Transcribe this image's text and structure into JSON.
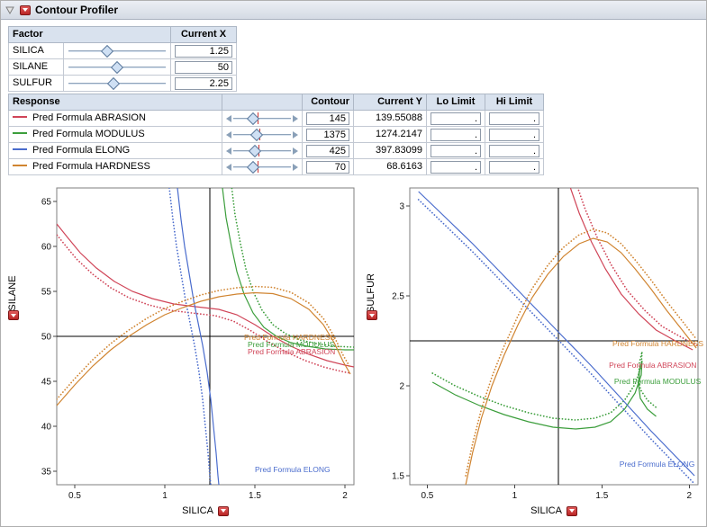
{
  "window": {
    "title": "Contour Profiler"
  },
  "factor_table": {
    "col_factor": "Factor",
    "col_current_x": "Current X",
    "rows": [
      {
        "name": "SILICA",
        "value": "1.25",
        "slider_pos": 0.4
      },
      {
        "name": "SILANE",
        "value": "50",
        "slider_pos": 0.5
      },
      {
        "name": "SULFUR",
        "value": "2.25",
        "slider_pos": 0.46
      }
    ]
  },
  "response_table": {
    "col_response": "Response",
    "col_contour": "Contour",
    "col_current_y": "Current Y",
    "col_lo": "Lo Limit",
    "col_hi": "Hi Limit",
    "rows": [
      {
        "name": "Pred Formula ABRASION",
        "color": "#d04558",
        "contour": "145",
        "current_y": "139.55088",
        "lo": ".",
        "hi": ".",
        "slider_pos": 0.38,
        "marker_pos": 0.44
      },
      {
        "name": "Pred Formula MODULUS",
        "color": "#3c9e3c",
        "contour": "1375",
        "current_y": "1274.2147",
        "lo": ".",
        "hi": ".",
        "slider_pos": 0.42,
        "marker_pos": 0.46
      },
      {
        "name": "Pred Formula ELONG",
        "color": "#4a6ccd",
        "contour": "425",
        "current_y": "397.83099",
        "lo": ".",
        "hi": ".",
        "slider_pos": 0.4,
        "marker_pos": 0.45
      },
      {
        "name": "Pred Formula HARDNESS",
        "color": "#d08430",
        "contour": "70",
        "current_y": "68.6163",
        "lo": ".",
        "hi": ".",
        "slider_pos": 0.38,
        "marker_pos": 0.44
      }
    ]
  },
  "chart_data": [
    {
      "type": "line",
      "xlabel": "SILICA",
      "ylabel": "SILANE",
      "xlim": [
        0.4,
        2.05
      ],
      "ylim": [
        33.5,
        66.5
      ],
      "xticks": [
        0.5,
        1,
        1.5,
        2
      ],
      "yticks": [
        35,
        40,
        45,
        50,
        55,
        60,
        65
      ],
      "crosshair": {
        "x": 1.25,
        "y": 50
      },
      "series": [
        {
          "name": "Pred Formula ABRASION",
          "color": "#d04558",
          "dotted_offset": [
            -0.02,
            -0.7
          ],
          "points": [
            [
              0.4,
              62.5
            ],
            [
              0.46,
              61.0
            ],
            [
              0.53,
              59.3
            ],
            [
              0.62,
              57.6
            ],
            [
              0.72,
              56.1
            ],
            [
              0.82,
              55.0
            ],
            [
              0.93,
              54.2
            ],
            [
              1.05,
              53.6
            ],
            [
              1.17,
              53.3
            ],
            [
              1.3,
              53.0
            ],
            [
              1.4,
              52.4
            ],
            [
              1.5,
              51.3
            ],
            [
              1.6,
              50.0
            ],
            [
              1.7,
              48.9
            ],
            [
              1.8,
              48.0
            ],
            [
              1.9,
              47.3
            ],
            [
              2.0,
              46.8
            ],
            [
              2.05,
              46.6
            ]
          ]
        },
        {
          "name": "Pred Formula MODULUS",
          "color": "#3c9e3c",
          "dotted_offset": [
            0.05,
            0.3
          ],
          "points": [
            [
              1.32,
              66.5
            ],
            [
              1.34,
              63.2
            ],
            [
              1.37,
              60.0
            ],
            [
              1.4,
              57.2
            ],
            [
              1.44,
              54.7
            ],
            [
              1.49,
              52.6
            ],
            [
              1.55,
              51.0
            ],
            [
              1.62,
              50.0
            ],
            [
              1.7,
              49.3
            ],
            [
              1.79,
              48.9
            ],
            [
              1.89,
              48.6
            ],
            [
              2.0,
              48.5
            ],
            [
              2.05,
              48.5
            ]
          ]
        },
        {
          "name": "Pred Formula ELONG",
          "color": "#4a6ccd",
          "dotted_offset": [
            -0.045,
            0
          ],
          "points": [
            [
              1.07,
              66.5
            ],
            [
              1.09,
              63.0
            ],
            [
              1.11,
              60.0
            ],
            [
              1.135,
              57.0
            ],
            [
              1.16,
              54.0
            ],
            [
              1.185,
              51.5
            ],
            [
              1.21,
              49.0
            ],
            [
              1.235,
              46.0
            ],
            [
              1.255,
              43.0
            ],
            [
              1.27,
              40.0
            ],
            [
              1.285,
              37.0
            ],
            [
              1.295,
              34.5
            ],
            [
              1.3,
              33.5
            ]
          ]
        },
        {
          "name": "Pred Formula HARDNESS",
          "color": "#d08430",
          "dotted_offset": [
            0,
            0.7
          ],
          "points": [
            [
              0.4,
              42.3
            ],
            [
              0.5,
              44.6
            ],
            [
              0.6,
              46.7
            ],
            [
              0.7,
              48.5
            ],
            [
              0.8,
              50.0
            ],
            [
              0.9,
              51.3
            ],
            [
              1.0,
              52.4
            ],
            [
              1.1,
              53.2
            ],
            [
              1.2,
              53.9
            ],
            [
              1.3,
              54.4
            ],
            [
              1.4,
              54.7
            ],
            [
              1.5,
              54.85
            ],
            [
              1.6,
              54.75
            ],
            [
              1.7,
              54.2
            ],
            [
              1.8,
              53.0
            ],
            [
              1.88,
              51.3
            ],
            [
              1.94,
              49.3
            ],
            [
              1.99,
              47.2
            ],
            [
              2.03,
              45.8
            ]
          ]
        }
      ],
      "labels": [
        {
          "text": "Pred Formula HARDNESS",
          "color": "#d08430",
          "x": 1.44,
          "y": 49.6
        },
        {
          "text": "Pred Formula MODULUS",
          "color": "#3c9e3c",
          "x": 1.46,
          "y": 48.8
        },
        {
          "text": "Pred Formula ABRASION",
          "color": "#d04558",
          "x": 1.46,
          "y": 48.0
        },
        {
          "text": "Pred Formula ELONG",
          "color": "#4a6ccd",
          "x": 1.5,
          "y": 34.9
        }
      ]
    },
    {
      "type": "line",
      "xlabel": "SILICA",
      "ylabel": "SULFUR",
      "xlim": [
        0.4,
        2.05
      ],
      "ylim": [
        1.45,
        3.1
      ],
      "xticks": [
        0.5,
        1,
        1.5,
        2
      ],
      "yticks": [
        1.5,
        2,
        2.5,
        3
      ],
      "crosshair": {
        "x": 1.25,
        "y": 2.25
      },
      "series": [
        {
          "name": "Pred Formula ABRASION",
          "color": "#d04558",
          "dotted_offset": [
            0.035,
            0.02
          ],
          "points": [
            [
              1.32,
              3.1
            ],
            [
              1.37,
              2.96
            ],
            [
              1.44,
              2.8
            ],
            [
              1.52,
              2.65
            ],
            [
              1.61,
              2.51
            ],
            [
              1.71,
              2.4
            ],
            [
              1.81,
              2.31
            ],
            [
              1.92,
              2.25
            ],
            [
              2.02,
              2.2
            ]
          ]
        },
        {
          "name": "Pred Formula MODULUS",
          "color": "#3c9e3c",
          "dotted_offset": [
            0,
            0.05
          ],
          "points": [
            [
              0.53,
              2.02
            ],
            [
              0.66,
              1.95
            ],
            [
              0.8,
              1.89
            ],
            [
              0.94,
              1.84
            ],
            [
              1.08,
              1.8
            ],
            [
              1.22,
              1.77
            ],
            [
              1.35,
              1.76
            ],
            [
              1.46,
              1.77
            ],
            [
              1.55,
              1.8
            ],
            [
              1.63,
              1.87
            ],
            [
              1.69,
              1.96
            ],
            [
              1.725,
              2.06
            ],
            [
              1.73,
              2.14
            ],
            [
              1.715,
              2.08
            ],
            [
              1.71,
              2.0
            ],
            [
              1.72,
              1.93
            ],
            [
              1.76,
              1.87
            ],
            [
              1.81,
              1.83
            ]
          ]
        },
        {
          "name": "Pred Formula ELONG",
          "color": "#4a6ccd",
          "dotted_offset": [
            0,
            -0.045
          ],
          "points": [
            [
              0.45,
              3.08
            ],
            [
              0.6,
              2.94
            ],
            [
              0.76,
              2.79
            ],
            [
              0.93,
              2.62
            ],
            [
              1.1,
              2.45
            ],
            [
              1.27,
              2.28
            ],
            [
              1.44,
              2.11
            ],
            [
              1.61,
              1.93
            ],
            [
              1.78,
              1.75
            ],
            [
              1.93,
              1.6
            ],
            [
              2.03,
              1.5
            ]
          ]
        },
        {
          "name": "Pred Formula HARDNESS",
          "color": "#d08430",
          "dotted_offset": [
            0,
            0.05
          ],
          "points": [
            [
              0.72,
              1.45
            ],
            [
              0.76,
              1.63
            ],
            [
              0.81,
              1.82
            ],
            [
              0.87,
              2.0
            ],
            [
              0.94,
              2.17
            ],
            [
              1.02,
              2.34
            ],
            [
              1.1,
              2.49
            ],
            [
              1.19,
              2.62
            ],
            [
              1.28,
              2.72
            ],
            [
              1.37,
              2.79
            ],
            [
              1.45,
              2.82
            ],
            [
              1.53,
              2.8
            ],
            [
              1.61,
              2.74
            ],
            [
              1.69,
              2.65
            ],
            [
              1.78,
              2.54
            ],
            [
              1.87,
              2.42
            ],
            [
              1.96,
              2.31
            ],
            [
              2.04,
              2.21
            ]
          ]
        }
      ],
      "labels": [
        {
          "text": "Pred Formula HARDNESS",
          "color": "#d08430",
          "x": 1.56,
          "y": 2.22
        },
        {
          "text": "Pred Formula ABRASION",
          "color": "#d04558",
          "x": 1.54,
          "y": 2.1
        },
        {
          "text": "Pred Formula MODULUS",
          "color": "#3c9e3c",
          "x": 1.57,
          "y": 2.01
        },
        {
          "text": "Pred Formula ELONG",
          "color": "#4a6ccd",
          "x": 1.6,
          "y": 1.55
        }
      ]
    }
  ]
}
